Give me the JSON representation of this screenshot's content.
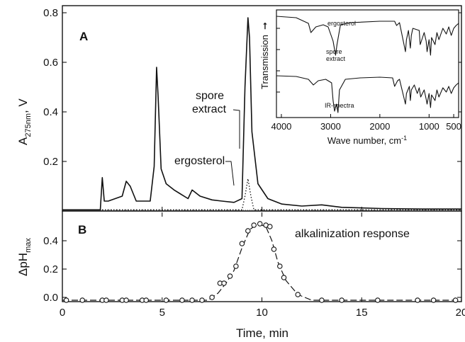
{
  "chart_data": [
    {
      "type": "line",
      "panel_label": "A",
      "xlabel": "Time, min",
      "ylabel": "A",
      "ylabel_sub": "275nm",
      "ylabel_unit": ", V",
      "xlim": [
        0,
        20
      ],
      "ylim": [
        0,
        0.8
      ],
      "xticks": [
        0,
        5,
        10,
        15,
        20
      ],
      "yticks": [
        0.2,
        0.4,
        0.6,
        0.8
      ],
      "ytick_labels": [
        "0.2",
        "0.4",
        "0.6",
        "0.8"
      ],
      "series": [
        {
          "name": "spore extract",
          "style": "solid",
          "x": [
            0,
            1.9,
            2.0,
            2.1,
            2.3,
            3.0,
            3.2,
            3.4,
            3.7,
            4.4,
            4.6,
            4.72,
            4.8,
            4.95,
            5.2,
            5.6,
            6.0,
            6.3,
            6.5,
            6.9,
            7.5,
            8.0,
            8.6,
            9.0,
            9.15,
            9.3,
            9.38,
            9.5,
            9.8,
            10.3,
            11.0,
            12.0,
            13.0,
            14,
            16,
            18,
            20
          ],
          "y": [
            0.005,
            0.005,
            0.135,
            0.04,
            0.04,
            0.06,
            0.12,
            0.1,
            0.04,
            0.04,
            0.18,
            0.58,
            0.46,
            0.17,
            0.11,
            0.085,
            0.065,
            0.05,
            0.085,
            0.06,
            0.045,
            0.04,
            0.035,
            0.05,
            0.5,
            0.78,
            0.7,
            0.32,
            0.11,
            0.05,
            0.028,
            0.02,
            0.025,
            0.015,
            0.01,
            0.008,
            0.008
          ]
        },
        {
          "name": "ergosterol",
          "style": "dotted",
          "x": [
            0,
            9.0,
            9.15,
            9.3,
            9.45,
            9.6,
            20
          ],
          "y": [
            0.005,
            0.005,
            0.06,
            0.13,
            0.06,
            0.005,
            0.005
          ]
        }
      ],
      "annotations": [
        "spore extract",
        "ergosterol"
      ]
    },
    {
      "type": "scatter",
      "panel_label": "B",
      "title": "alkalinization response",
      "xlabel": "Time, min",
      "ylabel": "ΔpH",
      "ylabel_sub": "max",
      "xlim": [
        0,
        20
      ],
      "ylim": [
        -0.03,
        0.6
      ],
      "xticks": [
        0,
        5,
        10,
        15,
        20
      ],
      "xtick_labels": [
        "0",
        "5",
        "10",
        "15",
        "20"
      ],
      "yticks": [
        0.0,
        0.2,
        0.4
      ],
      "ytick_labels": [
        "0.0",
        "0.2",
        "0.4"
      ],
      "x": [
        0.2,
        1.0,
        2.0,
        2.2,
        3.0,
        3.2,
        4.0,
        4.2,
        5.2,
        6.0,
        6.5,
        7.0,
        7.5,
        7.9,
        8.1,
        8.4,
        8.7,
        9.0,
        9.3,
        9.6,
        9.9,
        10.2,
        10.4,
        10.6,
        10.9,
        11.1,
        11.8,
        13.0,
        14.0,
        15.8,
        17.8,
        18.6,
        19.7
      ],
      "y": [
        -0.02,
        -0.02,
        -0.02,
        -0.02,
        -0.02,
        -0.02,
        -0.02,
        -0.02,
        -0.02,
        -0.02,
        -0.02,
        -0.02,
        0.0,
        0.1,
        0.1,
        0.15,
        0.22,
        0.38,
        0.47,
        0.51,
        0.52,
        0.51,
        0.5,
        0.34,
        0.22,
        0.14,
        0.02,
        -0.02,
        -0.02,
        -0.02,
        -0.02,
        -0.02,
        -0.02
      ],
      "fit": {
        "style": "dashed",
        "x": [
          0,
          7.3,
          7.8,
          8.2,
          8.6,
          9.0,
          9.4,
          9.8,
          10.2,
          10.5,
          10.8,
          11.2,
          11.8,
          12.5,
          20
        ],
        "y": [
          -0.02,
          -0.02,
          0.03,
          0.1,
          0.19,
          0.35,
          0.48,
          0.52,
          0.5,
          0.4,
          0.25,
          0.12,
          0.02,
          -0.02,
          -0.02
        ]
      }
    },
    {
      "type": "line",
      "inset": true,
      "ylabel": "Transmission",
      "xlabel": "Wave number, cm",
      "xlabel_sup": "-1",
      "xlim": [
        4100,
        400
      ],
      "xticks": [
        4000,
        3000,
        2000,
        1000,
        500
      ],
      "xtick_labels": [
        "4000",
        "3000",
        "2000",
        "1000",
        "500"
      ],
      "labels": {
        "top": "ergosterol",
        "middle": "spore\nextract",
        "bottom": "IR-spectra"
      },
      "series": [
        {
          "name": "ergosterol",
          "x": [
            4100,
            3700,
            3450,
            3400,
            3300,
            3150,
            3050,
            2950,
            2900,
            2870,
            2800,
            2600,
            2000,
            1700,
            1660,
            1600,
            1480,
            1460,
            1420,
            1380,
            1360,
            1330,
            1200,
            1180,
            1100,
            1060,
            1040,
            1000,
            970,
            950,
            880,
            840,
            800,
            720,
            650,
            600,
            550,
            500,
            450,
            400
          ],
          "y": [
            0.95,
            0.93,
            0.85,
            0.72,
            0.8,
            0.83,
            0.8,
            0.6,
            0.4,
            0.55,
            0.83,
            0.86,
            0.88,
            0.88,
            0.82,
            0.86,
            0.45,
            0.62,
            0.75,
            0.5,
            0.68,
            0.78,
            0.75,
            0.55,
            0.72,
            0.6,
            0.45,
            0.62,
            0.4,
            0.65,
            0.55,
            0.72,
            0.62,
            0.78,
            0.7,
            0.8,
            0.68,
            0.78,
            0.82,
            0.85
          ]
        },
        {
          "name": "spore extract",
          "x": [
            4100,
            3700,
            3450,
            3350,
            3250,
            3100,
            2980,
            2950,
            2920,
            2880,
            2850,
            2820,
            2700,
            2400,
            2000,
            1740,
            1700,
            1640,
            1600,
            1480,
            1460,
            1400,
            1380,
            1360,
            1300,
            1240,
            1200,
            1170,
            1100,
            1060,
            1040,
            1000,
            970,
            950,
            880,
            840,
            800,
            720,
            650,
            600,
            550,
            500,
            450,
            400
          ],
          "y": [
            0.55,
            0.54,
            0.5,
            0.42,
            0.48,
            0.5,
            0.45,
            0.2,
            0.05,
            0.15,
            0.03,
            0.35,
            0.5,
            0.52,
            0.53,
            0.52,
            0.4,
            0.48,
            0.5,
            0.15,
            0.3,
            0.4,
            0.2,
            0.35,
            0.42,
            0.3,
            0.38,
            0.25,
            0.35,
            0.22,
            0.15,
            0.3,
            0.1,
            0.28,
            0.2,
            0.35,
            0.25,
            0.38,
            0.32,
            0.4,
            0.3,
            0.38,
            0.42,
            0.45
          ]
        }
      ]
    }
  ]
}
